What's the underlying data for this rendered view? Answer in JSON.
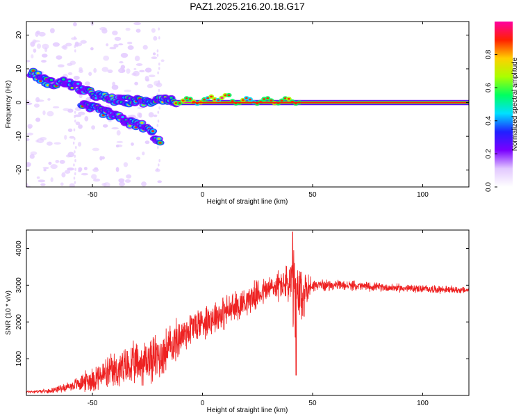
{
  "title": "PAZ1.2025.216.20.18.G17",
  "colors": {
    "snr_line": "#ee2222",
    "background_wash": "#e4ccff",
    "frame": "#000000"
  },
  "colorbar": {
    "label": "Normalized spectral amplitude",
    "ticks": [
      "0.0",
      "0.2",
      "0.4",
      "0.6",
      "0.8"
    ],
    "tick_values": [
      0.0,
      0.2,
      0.4,
      0.6,
      0.8
    ],
    "range": [
      0.0,
      1.0
    ],
    "colormap": [
      "#ffffff",
      "#e2c8ff",
      "#7a00ff",
      "#2020ff",
      "#00e0ff",
      "#00ff60",
      "#aaff00",
      "#ffd000",
      "#ff2000",
      "#ff00a0"
    ]
  },
  "chart_data": [
    {
      "type": "heatmap",
      "title": "PAZ1.2025.216.20.18.G17",
      "xlabel": "Height of straight line (km)",
      "ylabel": "Frequency (Hz)",
      "xlim": [
        -80,
        121
      ],
      "ylim": [
        -25,
        24
      ],
      "xticks": [
        -50,
        0,
        50,
        100
      ],
      "yticks": [
        -20,
        -10,
        0,
        10,
        20
      ],
      "grid": false,
      "ridges": [
        {
          "name_hidden": true,
          "points": [
            [
              -78,
              9
            ],
            [
              -73,
              7
            ],
            [
              -68,
              5.5
            ],
            [
              -63,
              6
            ],
            [
              -58,
              5
            ],
            [
              -52,
              3
            ],
            [
              -45,
              1.5
            ],
            [
              -38,
              0.5
            ],
            [
              -30,
              0.5
            ],
            [
              -24,
              0
            ],
            [
              -20,
              1.5
            ],
            [
              -15,
              0.5
            ],
            [
              -10,
              0.3
            ],
            [
              -5,
              0.5
            ],
            [
              0,
              0.5
            ],
            [
              5,
              1.5
            ],
            [
              10,
              1
            ],
            [
              20,
              0.5
            ],
            [
              40,
              0.2
            ],
            [
              60,
              0
            ],
            [
              90,
              0
            ],
            [
              121,
              0
            ]
          ]
        },
        {
          "name_hidden": true,
          "points": [
            [
              -55,
              -1
            ],
            [
              -48,
              -2
            ],
            [
              -40,
              -4
            ],
            [
              -33,
              -6
            ],
            [
              -27,
              -7
            ],
            [
              -23,
              -9
            ],
            [
              -19,
              -12
            ]
          ]
        }
      ],
      "steady_tone": {
        "frequency_hz": 0,
        "from_km": -12,
        "to_km": 121
      }
    },
    {
      "type": "line",
      "title": "",
      "xlabel": "Height of straight line (km)",
      "ylabel": "SNR (10 * v/v)",
      "xlim": [
        -80,
        121
      ],
      "ylim": [
        0,
        4500
      ],
      "xticks": [
        -50,
        0,
        50,
        100
      ],
      "yticks": [
        1000,
        2000,
        3000,
        4000
      ],
      "grid": false,
      "series": [
        {
          "envelope_x": [
            -80,
            -70,
            -60,
            -50,
            -40,
            -30,
            -25,
            -20,
            -15,
            -10,
            -5,
            0,
            5,
            10,
            15,
            20,
            25,
            30,
            35,
            38,
            41,
            43,
            45,
            47,
            50,
            60,
            70,
            80,
            90,
            100,
            110,
            121
          ],
          "envelope_mean": [
            100,
            120,
            250,
            450,
            650,
            850,
            950,
            1050,
            1300,
            1600,
            1850,
            2000,
            2150,
            2250,
            2400,
            2600,
            2750,
            2900,
            3000,
            3050,
            2900,
            2600,
            2600,
            2900,
            3000,
            3000,
            2980,
            2950,
            2920,
            2900,
            2880,
            2860
          ],
          "envelope_amplitude": [
            50,
            60,
            150,
            400,
            600,
            700,
            750,
            800,
            700,
            650,
            600,
            550,
            550,
            550,
            500,
            450,
            450,
            450,
            500,
            550,
            1400,
            1500,
            1300,
            600,
            200,
            150,
            150,
            130,
            130,
            120,
            120,
            100
          ],
          "peak_max": 4450,
          "peak_max_x": 41,
          "dip_min": 550,
          "dip_min_x": 42.5
        }
      ]
    }
  ]
}
